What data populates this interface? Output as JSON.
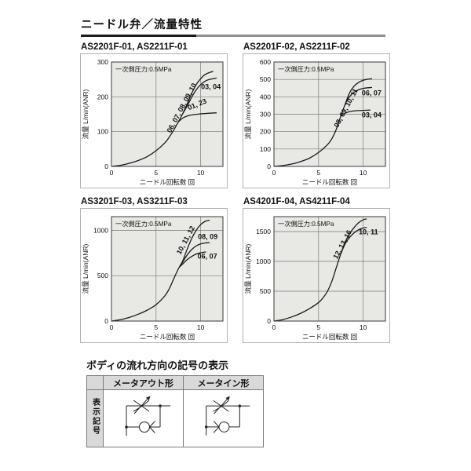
{
  "page_title": "ニードル弁／流量特性",
  "chart_data": [
    {
      "type": "line",
      "title": "AS2201F-01, AS2211F-01",
      "annotation": "一次側圧力:0.5MPa",
      "xlabel": "ニードル回転数 回",
      "ylabel": "流量 L/min(ANR)",
      "xlim": [
        0,
        12.5
      ],
      "ylim": [
        0,
        300
      ],
      "xticks": [
        0,
        5,
        10
      ],
      "yticks": [
        0,
        100,
        200,
        300
      ],
      "xgrid": [
        5,
        10
      ],
      "ygrid": [
        100,
        200
      ],
      "grid": "on",
      "plot_bg": "#e8e8e5",
      "series": [
        {
          "name": "06, 07, 08, 09, 10",
          "points": [
            [
              0,
              0
            ],
            [
              1,
              3
            ],
            [
              2,
              9
            ],
            [
              3,
              17
            ],
            [
              4,
              28
            ],
            [
              5,
              45
            ],
            [
              6,
              68
            ],
            [
              6.5,
              85
            ],
            [
              7,
              105
            ],
            [
              7.5,
              128
            ],
            [
              8,
              152
            ],
            [
              8.5,
              180
            ],
            [
              9,
              210
            ],
            [
              9.5,
              235
            ],
            [
              10,
              252
            ],
            [
              10.5,
              264
            ],
            [
              11,
              270
            ],
            [
              11.4,
              273
            ]
          ]
        },
        {
          "name": "03, 04",
          "points": [
            [
              8,
              152
            ],
            [
              8.5,
              174
            ],
            [
              9,
              199
            ],
            [
              9.5,
              220
            ],
            [
              10,
              235
            ],
            [
              10.5,
              245
            ],
            [
              11,
              250
            ],
            [
              11.8,
              254
            ]
          ]
        },
        {
          "name": "01, 23",
          "points": [
            [
              7.5,
              128
            ],
            [
              8,
              139
            ],
            [
              8.5,
              145
            ],
            [
              9,
              148
            ],
            [
              10,
              151
            ],
            [
              11,
              153
            ],
            [
              11.8,
              154
            ]
          ]
        }
      ],
      "series_labels": [
        {
          "text": "06, 07, 08, 09, 10",
          "x": 8.1,
          "y": 165,
          "rotate": -62
        },
        {
          "text": "03, 04",
          "x": 11.15,
          "y": 222,
          "rotate": 0
        },
        {
          "text": "01, 23",
          "x": 9.7,
          "y": 172,
          "rotate": -22
        }
      ]
    },
    {
      "type": "line",
      "title": "AS2201F-02, AS2211F-02",
      "annotation": "一次側圧力:0.5MPa",
      "xlabel": "ニードル回転数 回",
      "ylabel": "流量 L/min(ANR)",
      "xlim": [
        0,
        12.5
      ],
      "ylim": [
        0,
        600
      ],
      "xticks": [
        0,
        5,
        10
      ],
      "yticks": [
        0,
        100,
        200,
        300,
        400,
        500,
        600
      ],
      "xgrid": [
        5,
        10
      ],
      "ygrid": [
        100,
        200,
        300,
        400,
        500
      ],
      "grid": "on",
      "plot_bg": "#e8e8e5",
      "series": [
        {
          "name": "08, 09, 10, 11",
          "points": [
            [
              0,
              0
            ],
            [
              1,
              5
            ],
            [
              2,
              14
            ],
            [
              3,
              28
            ],
            [
              4,
              48
            ],
            [
              5,
              80
            ],
            [
              6,
              125
            ],
            [
              6.5,
              160
            ],
            [
              7,
              215
            ],
            [
              7.5,
              290
            ],
            [
              8,
              360
            ],
            [
              8.5,
              425
            ],
            [
              9,
              462
            ],
            [
              9.5,
              483
            ],
            [
              10,
              495
            ],
            [
              10.5,
              501
            ],
            [
              11,
              504
            ]
          ]
        },
        {
          "name": "06, 07",
          "points": [
            [
              8,
              360
            ],
            [
              8.5,
              402
            ],
            [
              9,
              427
            ],
            [
              9.5,
              441
            ],
            [
              10,
              448
            ],
            [
              10.5,
              452
            ],
            [
              11,
              454
            ]
          ]
        },
        {
          "name": "03, 04",
          "points": [
            [
              7.5,
              290
            ],
            [
              8,
              306
            ],
            [
              8.5,
              315
            ],
            [
              9,
              319
            ],
            [
              10,
              322
            ],
            [
              10.8,
              324
            ]
          ]
        }
      ],
      "series_labels": [
        {
          "text": "08, 09, 10, 11",
          "x": 8.3,
          "y": 330,
          "rotate": -62
        },
        {
          "text": "06, 07",
          "x": 10.95,
          "y": 408,
          "rotate": 0
        },
        {
          "text": "03, 04",
          "x": 10.95,
          "y": 283,
          "rotate": 0
        }
      ]
    },
    {
      "type": "line",
      "title": "AS3201F-03, AS3211F-03",
      "annotation": "一次側圧力:0.5MPa",
      "xlabel": "ニードル回転数 回",
      "ylabel": "流量 L/min(ANR)",
      "xlim": [
        0,
        12.5
      ],
      "ylim": [
        0,
        1150
      ],
      "xticks": [
        0,
        5,
        10
      ],
      "yticks": [
        0,
        500,
        1000
      ],
      "xgrid": [
        5,
        10
      ],
      "ygrid": [
        500,
        1000
      ],
      "grid": "on",
      "plot_bg": "#e8e8e5",
      "series": [
        {
          "name": "10, 11, 12",
          "points": [
            [
              0,
              0
            ],
            [
              1,
              15
            ],
            [
              2,
              40
            ],
            [
              3,
              75
            ],
            [
              4,
              120
            ],
            [
              5,
              180
            ],
            [
              6,
              280
            ],
            [
              6.5,
              360
            ],
            [
              7,
              470
            ],
            [
              7.5,
              575
            ],
            [
              8,
              665
            ],
            [
              8.5,
              795
            ],
            [
              9,
              910
            ],
            [
              9.5,
              1000
            ],
            [
              10,
              1062
            ],
            [
              10.5,
              1098
            ],
            [
              11,
              1112
            ]
          ]
        },
        {
          "name": "08, 09",
          "points": [
            [
              7.8,
              620
            ],
            [
              8.2,
              685
            ],
            [
              8.6,
              742
            ],
            [
              9,
              788
            ],
            [
              9.5,
              828
            ],
            [
              10,
              850
            ],
            [
              10.5,
              860
            ],
            [
              11,
              865
            ]
          ]
        },
        {
          "name": "06, 07",
          "points": [
            [
              7.6,
              593
            ],
            [
              8,
              630
            ],
            [
              8.5,
              678
            ],
            [
              9,
              712
            ],
            [
              9.5,
              738
            ],
            [
              10,
              752
            ],
            [
              10.6,
              762
            ]
          ]
        }
      ],
      "series_labels": [
        {
          "text": "10, 11, 12",
          "x": 8.55,
          "y": 880,
          "rotate": -62
        },
        {
          "text": "08, 09",
          "x": 10.8,
          "y": 903,
          "rotate": 0
        },
        {
          "text": "06, 07",
          "x": 10.75,
          "y": 688,
          "rotate": 0
        }
      ]
    },
    {
      "type": "line",
      "title": "AS4201F-04, AS4211F-04",
      "annotation": "一次側圧力:0.5MPa",
      "xlabel": "ニードル回転数 回",
      "ylabel": "流量 L/min(ANR)",
      "xlim": [
        0,
        12.5
      ],
      "ylim": [
        0,
        1750
      ],
      "xticks": [
        0,
        5,
        10
      ],
      "yticks": [
        0,
        500,
        1000,
        1500
      ],
      "xgrid": [
        5,
        10
      ],
      "ygrid": [
        500,
        1000,
        1500
      ],
      "grid": "on",
      "plot_bg": "#e8e8e5",
      "series": [
        {
          "name": "12, 13, 16",
          "points": [
            [
              0,
              0
            ],
            [
              1,
              25
            ],
            [
              2,
              70
            ],
            [
              3,
              130
            ],
            [
              4,
              210
            ],
            [
              5,
              310
            ],
            [
              5.5,
              390
            ],
            [
              6,
              500
            ],
            [
              6.5,
              670
            ],
            [
              7,
              900
            ],
            [
              7.5,
              1130
            ],
            [
              8,
              1330
            ],
            [
              8.5,
              1470
            ],
            [
              9,
              1570
            ],
            [
              9.5,
              1650
            ],
            [
              10,
              1697
            ],
            [
              10.4,
              1712
            ]
          ]
        },
        {
          "name": "10, 11",
          "points": [
            [
              7.5,
              1130
            ],
            [
              8,
              1300
            ],
            [
              8.5,
              1405
            ],
            [
              9,
              1480
            ],
            [
              9.5,
              1532
            ],
            [
              10,
              1560
            ],
            [
              10.4,
              1570
            ]
          ]
        }
      ],
      "series_labels": [
        {
          "text": "12, 13, 16",
          "x": 7.9,
          "y": 1265,
          "rotate": -62
        },
        {
          "text": "10, 11",
          "x": 10.6,
          "y": 1455,
          "rotate": 0
        }
      ]
    }
  ],
  "symbols_section": {
    "heading": "ボディの流れ方向の記号の表示",
    "row_header": "表示記号",
    "columns": [
      {
        "label": "メータアウト形",
        "icon": "meter-out-circuit-icon"
      },
      {
        "label": "メータイン形",
        "icon": "meter-in-circuit-icon"
      }
    ]
  },
  "colors": {
    "curve": "#1a1a1a",
    "plot_background": "#e8e8e5",
    "table_header_background": "#d9d9d9",
    "rule_black": "#1a1a1a",
    "rule_gray": "#8f8f8f"
  }
}
